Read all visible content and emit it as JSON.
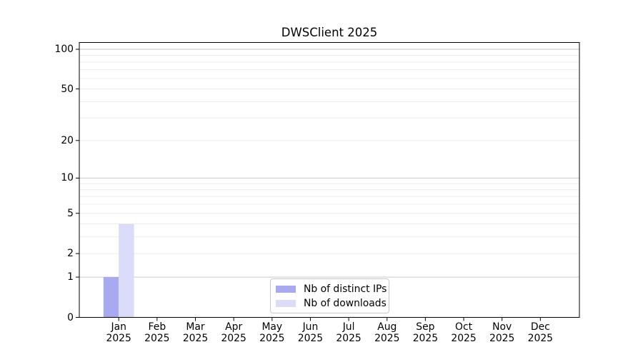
{
  "chart_data": {
    "type": "bar",
    "title": "DWSClient 2025",
    "x": {
      "months": [
        "Jan",
        "Feb",
        "Mar",
        "Apr",
        "May",
        "Jun",
        "Jul",
        "Aug",
        "Sep",
        "Oct",
        "Nov",
        "Dec"
      ],
      "year": "2025"
    },
    "series": [
      {
        "name": "Nb of distinct IPs",
        "color": "#a9a9f2",
        "values": [
          1,
          0,
          0,
          0,
          0,
          0,
          0,
          0,
          0,
          0,
          0,
          0
        ]
      },
      {
        "name": "Nb of downloads",
        "color": "#dbdbfa",
        "values": [
          4,
          0,
          0,
          0,
          0,
          0,
          0,
          0,
          0,
          0,
          0,
          0
        ]
      }
    ],
    "y_axis": {
      "scale": "log1p",
      "tick_values": [
        0,
        1,
        2,
        5,
        10,
        20,
        50,
        100
      ],
      "tick_labels": [
        "0",
        "1",
        "2",
        "5",
        "10",
        "20",
        "50",
        "100"
      ],
      "major_gridlines": [
        1,
        10,
        100
      ],
      "minor_gridlines": [
        2,
        3,
        4,
        5,
        6,
        7,
        8,
        9,
        20,
        30,
        40,
        50,
        60,
        70,
        80,
        90
      ],
      "ylim": [
        0,
        112
      ]
    },
    "legend": {
      "position": "lower center"
    },
    "colors": {
      "major_grid": "#c6c6c6",
      "minor_grid": "#ebebeb",
      "axis": "#000000",
      "background": "#ffffff"
    }
  }
}
